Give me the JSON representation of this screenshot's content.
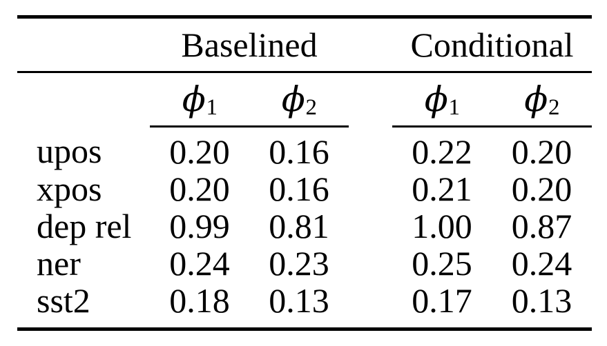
{
  "colors": {
    "background": "#ffffff",
    "text": "#000000",
    "rule": "#000000"
  },
  "table": {
    "group_headers": [
      "Baselined",
      "Conditional"
    ],
    "subheaders": [
      {
        "symbol": "ϕ",
        "sub": "1"
      },
      {
        "symbol": "ϕ",
        "sub": "2"
      },
      {
        "symbol": "ϕ",
        "sub": "1"
      },
      {
        "symbol": "ϕ",
        "sub": "2"
      }
    ],
    "rows": [
      {
        "label": "upos",
        "values": [
          "0.20",
          "0.16",
          "0.22",
          "0.20"
        ]
      },
      {
        "label": "xpos",
        "values": [
          "0.20",
          "0.16",
          "0.21",
          "0.20"
        ]
      },
      {
        "label": "dep rel",
        "values": [
          "0.99",
          "0.81",
          "1.00",
          "0.87"
        ]
      },
      {
        "label": "ner",
        "values": [
          "0.24",
          "0.23",
          "0.25",
          "0.24"
        ]
      },
      {
        "label": "sst2",
        "values": [
          "0.18",
          "0.13",
          "0.17",
          "0.13"
        ]
      }
    ]
  }
}
